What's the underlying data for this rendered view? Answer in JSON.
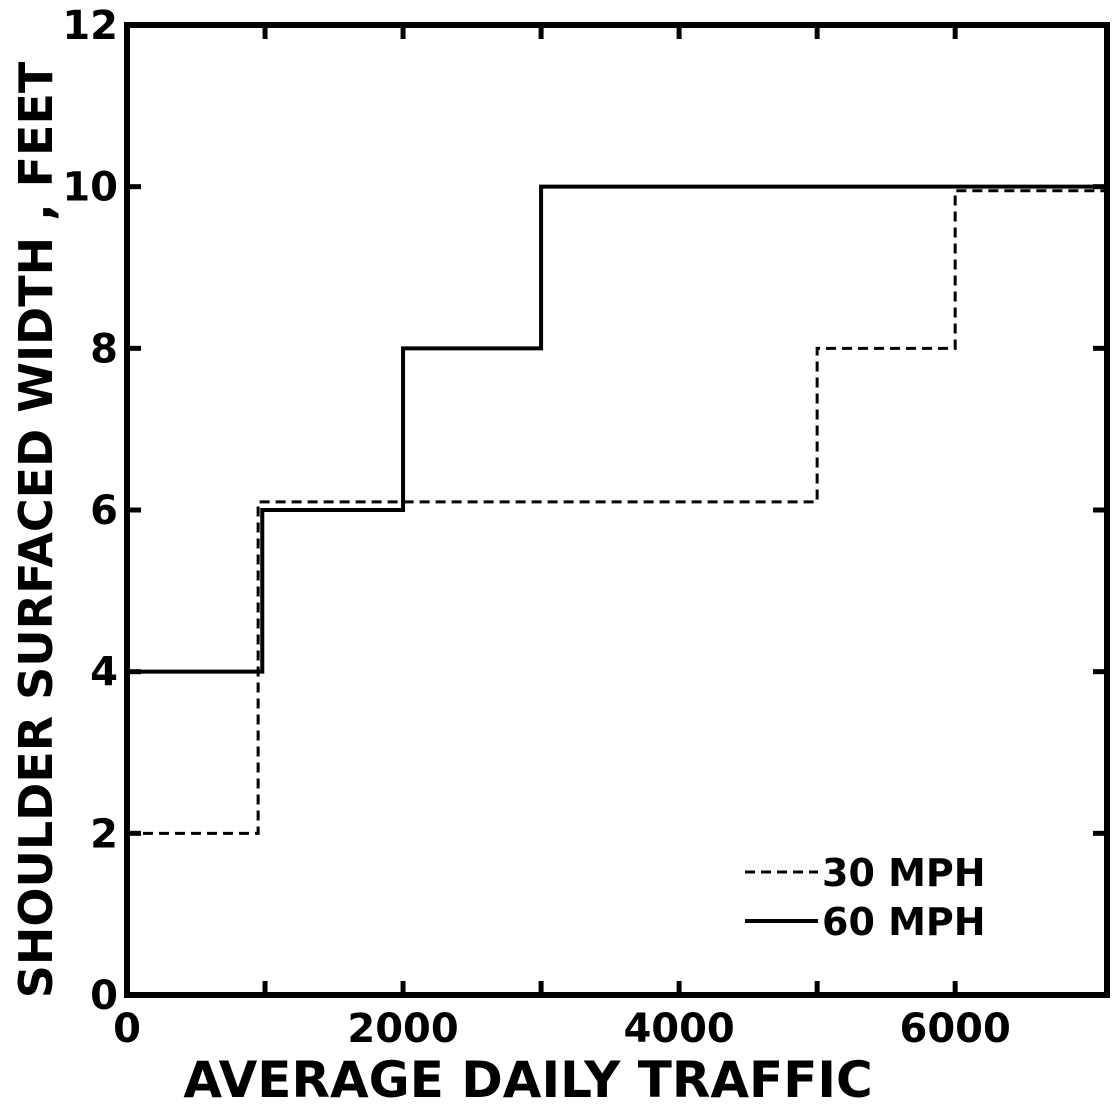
{
  "chart_data": {
    "type": "line",
    "title": "",
    "xlabel": "AVERAGE DAILY TRAFFIC",
    "ylabel": "SHOULDER SURFACED WIDTH , FEET",
    "xlim": [
      0,
      7100
    ],
    "ylim": [
      0,
      12
    ],
    "xticks": [
      0,
      2000,
      4000,
      6000
    ],
    "xtick_labels": [
      "0",
      "2000",
      "4000",
      "6000"
    ],
    "yticks": [
      0,
      2,
      4,
      6,
      8,
      10,
      12
    ],
    "ytick_labels": [
      "0",
      "2",
      "4",
      "6",
      "8",
      "10",
      "12"
    ],
    "grid": false,
    "legend": "lower-right",
    "series": [
      {
        "name": "30 MPH",
        "style": "dashed",
        "step": true,
        "x": [
          0,
          950,
          950,
          5000,
          5000,
          6000,
          6000,
          7100
        ],
        "y": [
          2,
          2,
          6.1,
          6.1,
          8,
          8,
          9.95,
          9.95
        ]
      },
      {
        "name": "60 MPH",
        "style": "solid",
        "step": true,
        "x": [
          0,
          980,
          980,
          2000,
          2000,
          3000,
          3000,
          7100
        ],
        "y": [
          4,
          4,
          6,
          6,
          8,
          8,
          10,
          10
        ]
      }
    ],
    "legend_labels": [
      "30 MPH",
      "60 MPH"
    ],
    "colors": {
      "line": "#000000",
      "background": "#ffffff"
    }
  }
}
